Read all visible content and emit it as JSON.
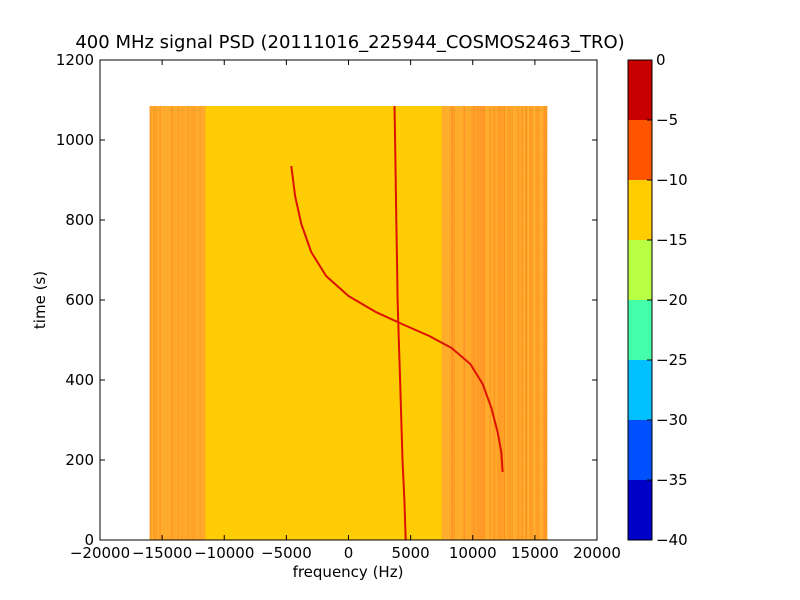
{
  "chart_data": {
    "type": "heatmap",
    "title": "400 MHz signal PSD (20111016_225944_COSMOS2463_TRO)",
    "xlabel": "frequency (Hz)",
    "ylabel": "time (s)",
    "xlim": [
      -20000,
      20000
    ],
    "ylim": [
      0,
      1200
    ],
    "xticks": [
      "−20000",
      "−15000",
      "−10000",
      "−5000",
      "0",
      "5000",
      "10000",
      "15000",
      "20000"
    ],
    "yticks": [
      "0",
      "200",
      "400",
      "600",
      "800",
      "1000",
      "1200"
    ],
    "data_extent": {
      "x": [
        -16000,
        16000
      ],
      "y": [
        0,
        1085
      ]
    },
    "background_level_color": "#ffcc00",
    "edge_band_color": "#ff9933",
    "edge_band_x_ranges": [
      [
        -16000,
        -11500
      ],
      [
        7500,
        16000
      ]
    ],
    "signals": [
      {
        "description": "carrier line",
        "color": "#dd1100",
        "points": [
          [
            4600,
            0
          ],
          [
            4500,
            100
          ],
          [
            4350,
            200
          ],
          [
            4250,
            300
          ],
          [
            4150,
            400
          ],
          [
            4050,
            500
          ],
          [
            3950,
            600
          ],
          [
            3900,
            700
          ],
          [
            3850,
            800
          ],
          [
            3800,
            900
          ],
          [
            3750,
            1000
          ],
          [
            3700,
            1085
          ]
        ]
      },
      {
        "description": "Doppler curve",
        "color": "#dd1100",
        "points": [
          [
            12400,
            170
          ],
          [
            12300,
            220
          ],
          [
            12000,
            270
          ],
          [
            11500,
            330
          ],
          [
            10800,
            390
          ],
          [
            9800,
            440
          ],
          [
            8300,
            480
          ],
          [
            6500,
            510
          ],
          [
            4300,
            540
          ],
          [
            2200,
            570
          ],
          [
            0,
            610
          ],
          [
            -1800,
            660
          ],
          [
            -3000,
            720
          ],
          [
            -3800,
            790
          ],
          [
            -4300,
            860
          ],
          [
            -4600,
            935
          ]
        ]
      }
    ],
    "colorbar": {
      "ticks": [
        "0",
        "−5",
        "−10",
        "−15",
        "−20",
        "−25",
        "−30",
        "−35",
        "−40"
      ],
      "range": [
        -40,
        0
      ],
      "levels": [
        {
          "from": -40,
          "to": -35,
          "color": "#0000c8"
        },
        {
          "from": -35,
          "to": -30,
          "color": "#0050ff"
        },
        {
          "from": -30,
          "to": -25,
          "color": "#00c0ff"
        },
        {
          "from": -25,
          "to": -20,
          "color": "#44ffaa"
        },
        {
          "from": -20,
          "to": -15,
          "color": "#b8ff44"
        },
        {
          "from": -15,
          "to": -10,
          "color": "#ffcc00"
        },
        {
          "from": -10,
          "to": -5,
          "color": "#ff5500"
        },
        {
          "from": -5,
          "to": 0,
          "color": "#c80000"
        }
      ]
    }
  }
}
